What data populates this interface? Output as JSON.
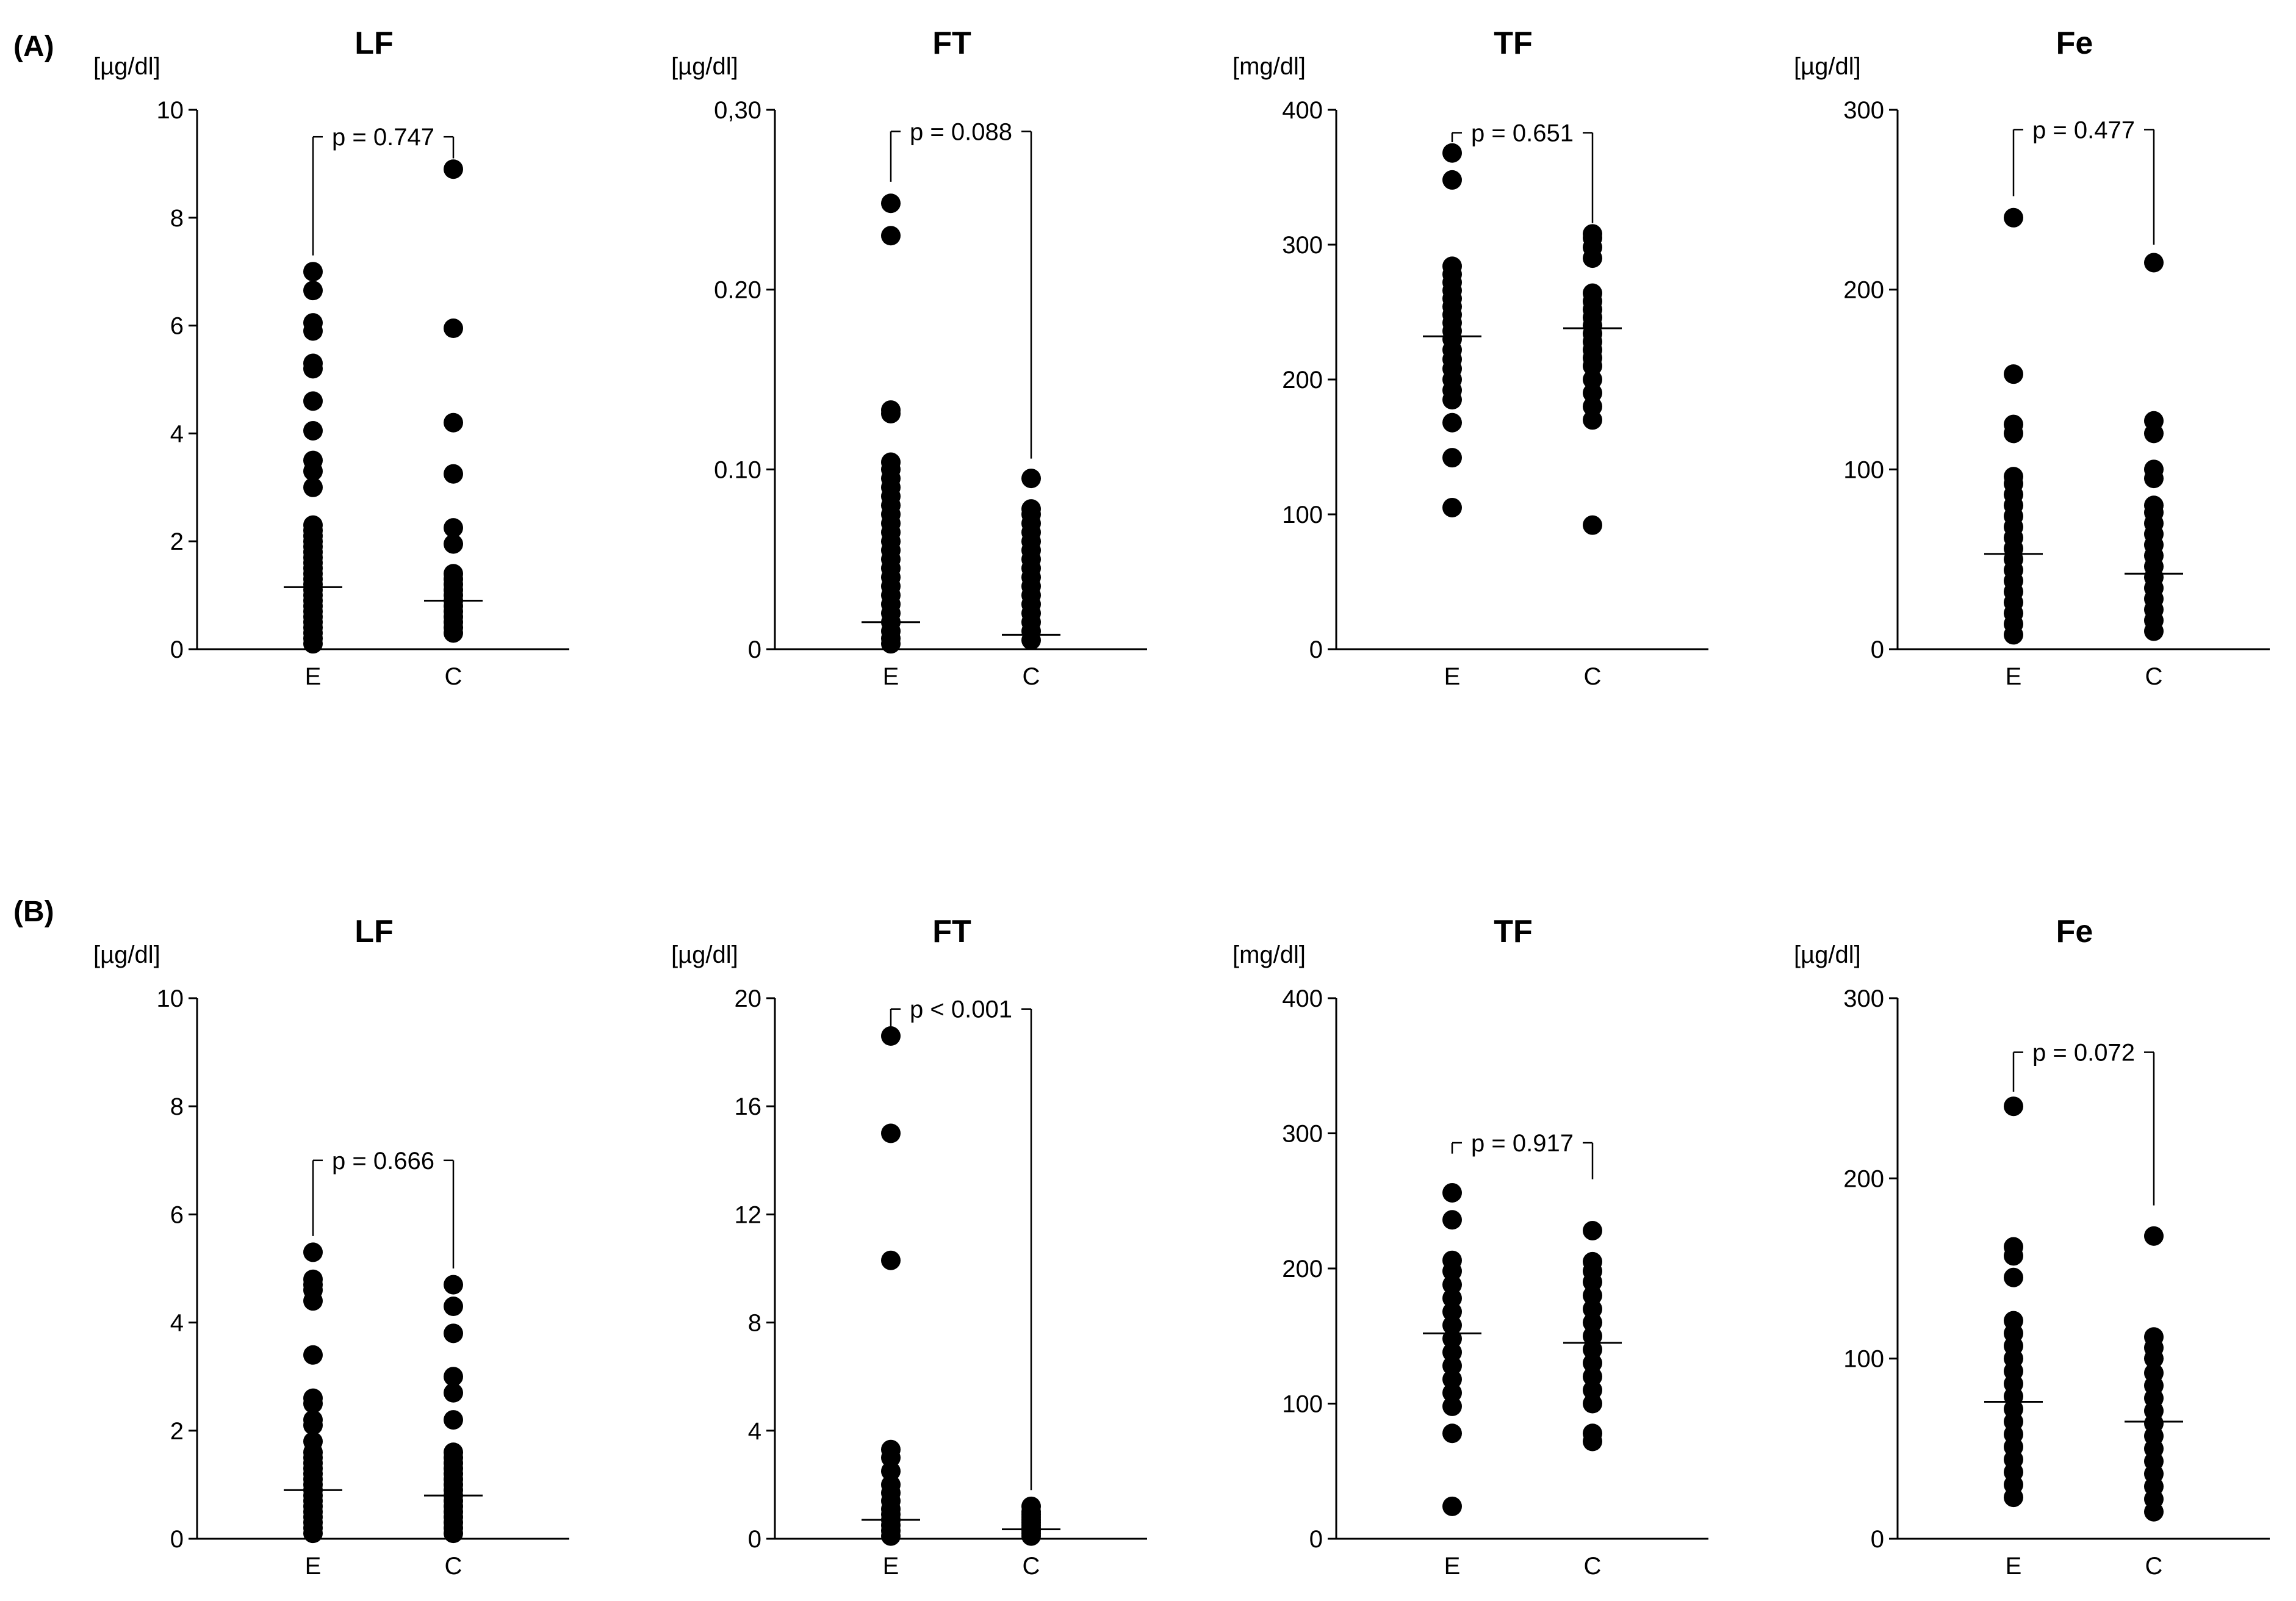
{
  "panels": [
    {
      "label": "(A)",
      "charts": [
        {
          "title": "LF",
          "ylabel": "[µg/dl]",
          "type": "scatter",
          "categories": [
            "E",
            "C"
          ],
          "yticks": [
            0,
            2,
            4,
            6,
            8,
            10
          ],
          "ytick_labels": [
            "0",
            "2",
            "4",
            "6",
            "8",
            "10"
          ],
          "ylim": [
            0,
            10
          ],
          "series": [
            {
              "name": "E",
              "values": [
                0.1,
                0.2,
                0.3,
                0.4,
                0.5,
                0.6,
                0.7,
                0.8,
                0.9,
                1.0,
                1.1,
                1.2,
                1.3,
                1.4,
                1.5,
                1.6,
                1.7,
                1.8,
                1.9,
                2.0,
                2.1,
                2.2,
                2.3,
                3.0,
                3.3,
                3.5,
                4.05,
                4.6,
                5.2,
                5.3,
                5.9,
                6.05,
                6.65,
                7.0
              ],
              "median": 1.15
            },
            {
              "name": "C",
              "values": [
                0.3,
                0.4,
                0.5,
                0.6,
                0.7,
                0.8,
                0.9,
                1.0,
                1.1,
                1.2,
                1.3,
                1.4,
                1.95,
                2.25,
                3.25,
                4.2,
                5.95,
                8.9
              ],
              "median": 0.9
            }
          ],
          "pvalue": "p = 0.747",
          "bracket_y": 9.5,
          "bracket_ends": [
            7.3,
            9.1
          ]
        },
        {
          "title": "FT",
          "ylabel": "[µg/dl]",
          "type": "scatter",
          "categories": [
            "E",
            "C"
          ],
          "yticks": [
            0,
            0.1,
            0.2,
            0.3
          ],
          "ytick_labels": [
            "0",
            "0.10",
            "0.20",
            "0,30"
          ],
          "ylim": [
            0,
            0.3
          ],
          "series": [
            {
              "name": "E",
              "values": [
                0.003,
                0.006,
                0.01,
                0.015,
                0.02,
                0.025,
                0.03,
                0.035,
                0.04,
                0.045,
                0.05,
                0.055,
                0.06,
                0.065,
                0.07,
                0.075,
                0.08,
                0.085,
                0.09,
                0.095,
                0.1,
                0.104,
                0.131,
                0.133,
                0.23,
                0.248
              ],
              "median": 0.015
            },
            {
              "name": "C",
              "values": [
                0.005,
                0.01,
                0.015,
                0.02,
                0.025,
                0.03,
                0.035,
                0.04,
                0.045,
                0.05,
                0.055,
                0.06,
                0.065,
                0.07,
                0.075,
                0.078,
                0.095
              ],
              "median": 0.008
            }
          ],
          "pvalue": "p = 0.088",
          "bracket_y": 0.288,
          "bracket_ends": [
            0.26,
            0.106
          ]
        },
        {
          "title": "TF",
          "ylabel": "[mg/dl]",
          "type": "scatter",
          "categories": [
            "E",
            "C"
          ],
          "yticks": [
            0,
            100,
            200,
            300,
            400
          ],
          "ytick_labels": [
            "0",
            "100",
            "200",
            "300",
            "400"
          ],
          "ylim": [
            0,
            400
          ],
          "series": [
            {
              "name": "E",
              "values": [
                105,
                142,
                168,
                185,
                192,
                200,
                208,
                215,
                222,
                230,
                236,
                242,
                248,
                254,
                260,
                266,
                272,
                278,
                284,
                348,
                368
              ],
              "median": 232
            },
            {
              "name": "C",
              "values": [
                92,
                170,
                180,
                190,
                200,
                210,
                216,
                222,
                228,
                234,
                240,
                246,
                252,
                258,
                264,
                290,
                298,
                305,
                308
              ],
              "median": 238
            }
          ],
          "pvalue": "p = 0.651",
          "bracket_y": 383,
          "bracket_ends": [
            376,
            316
          ]
        },
        {
          "title": "Fe",
          "ylabel": "[µg/dl]",
          "type": "scatter",
          "categories": [
            "E",
            "C"
          ],
          "yticks": [
            0,
            100,
            200,
            300
          ],
          "ytick_labels": [
            "0",
            "100",
            "200",
            "300"
          ],
          "ylim": [
            0,
            300
          ],
          "series": [
            {
              "name": "E",
              "values": [
                8,
                14,
                20,
                26,
                32,
                38,
                44,
                50,
                56,
                62,
                68,
                74,
                80,
                86,
                92,
                96,
                120,
                125,
                153,
                240
              ],
              "median": 53
            },
            {
              "name": "C",
              "values": [
                10,
                16,
                22,
                28,
                34,
                40,
                46,
                52,
                58,
                64,
                70,
                76,
                80,
                95,
                100,
                120,
                127,
                215
              ],
              "median": 42
            }
          ],
          "pvalue": "p = 0.477",
          "bracket_y": 289,
          "bracket_ends": [
            252,
            225
          ]
        }
      ]
    },
    {
      "label": "(B)",
      "charts": [
        {
          "title": "LF",
          "ylabel": "[µg/dl]",
          "type": "scatter",
          "categories": [
            "E",
            "C"
          ],
          "yticks": [
            0,
            2,
            4,
            6,
            8,
            10
          ],
          "ytick_labels": [
            "0",
            "2",
            "4",
            "6",
            "8",
            "10"
          ],
          "ylim": [
            0,
            10
          ],
          "series": [
            {
              "name": "E",
              "values": [
                0.1,
                0.2,
                0.3,
                0.4,
                0.5,
                0.6,
                0.7,
                0.8,
                0.9,
                1.0,
                1.1,
                1.2,
                1.3,
                1.4,
                1.5,
                1.6,
                1.8,
                2.1,
                2.2,
                2.5,
                2.6,
                3.4,
                4.4,
                4.6,
                4.7,
                4.8,
                5.3
              ],
              "median": 0.9
            },
            {
              "name": "C",
              "values": [
                0.1,
                0.2,
                0.3,
                0.4,
                0.5,
                0.6,
                0.7,
                0.8,
                0.9,
                1.0,
                1.1,
                1.2,
                1.3,
                1.4,
                1.5,
                1.6,
                2.2,
                2.7,
                3.0,
                3.8,
                4.3,
                4.7
              ],
              "median": 0.8
            }
          ],
          "pvalue": "p = 0.666",
          "bracket_y": 7.0,
          "bracket_ends": [
            5.6,
            5.0
          ]
        },
        {
          "title": "FT",
          "ylabel": "[µg/dl]",
          "type": "scatter",
          "categories": [
            "E",
            "C"
          ],
          "yticks": [
            0,
            4,
            8,
            12,
            16,
            20
          ],
          "ytick_labels": [
            "0",
            "4",
            "8",
            "12",
            "16",
            "20"
          ],
          "ylim": [
            0,
            20
          ],
          "series": [
            {
              "name": "E",
              "values": [
                0.1,
                0.3,
                0.5,
                0.7,
                0.9,
                1.1,
                1.4,
                1.7,
                2.0,
                2.5,
                3.0,
                3.3,
                10.3,
                15.0,
                18.6
              ],
              "median": 0.7
            },
            {
              "name": "C",
              "values": [
                0.1,
                0.2,
                0.3,
                0.4,
                0.5,
                0.6,
                0.7,
                0.8,
                0.9,
                1.0,
                1.2
              ],
              "median": 0.35
            }
          ],
          "pvalue": "p < 0.001",
          "bracket_y": 19.6,
          "bracket_ends": [
            18.9,
            1.8
          ]
        },
        {
          "title": "TF",
          "ylabel": "[mg/dl]",
          "type": "scatter",
          "categories": [
            "E",
            "C"
          ],
          "yticks": [
            0,
            100,
            200,
            300,
            400
          ],
          "ytick_labels": [
            "0",
            "100",
            "200",
            "300",
            "400"
          ],
          "ylim": [
            0,
            400
          ],
          "series": [
            {
              "name": "E",
              "values": [
                24,
                78,
                98,
                108,
                118,
                128,
                138,
                148,
                158,
                168,
                178,
                188,
                198,
                206,
                236,
                256
              ],
              "median": 152
            },
            {
              "name": "C",
              "values": [
                72,
                78,
                100,
                110,
                120,
                130,
                140,
                150,
                160,
                170,
                180,
                190,
                198,
                205,
                228
              ],
              "median": 145
            }
          ],
          "pvalue": "p = 0.917",
          "bracket_y": 293,
          "bracket_ends": [
            285,
            266
          ]
        },
        {
          "title": "Fe",
          "ylabel": "[µg/dl]",
          "type": "scatter",
          "categories": [
            "E",
            "C"
          ],
          "yticks": [
            0,
            100,
            200,
            300
          ],
          "ytick_labels": [
            "0",
            "100",
            "200",
            "300"
          ],
          "ylim": [
            0,
            300
          ],
          "series": [
            {
              "name": "E",
              "values": [
                23,
                30,
                37,
                44,
                51,
                58,
                65,
                72,
                79,
                86,
                93,
                100,
                107,
                114,
                121,
                145,
                157,
                162,
                240
              ],
              "median": 76
            },
            {
              "name": "C",
              "values": [
                15,
                22,
                29,
                36,
                43,
                50,
                57,
                64,
                71,
                78,
                85,
                92,
                100,
                106,
                112,
                168
              ],
              "median": 65
            }
          ],
          "pvalue": "p = 0.072",
          "bracket_y": 270,
          "bracket_ends": [
            248,
            185
          ]
        }
      ]
    }
  ]
}
